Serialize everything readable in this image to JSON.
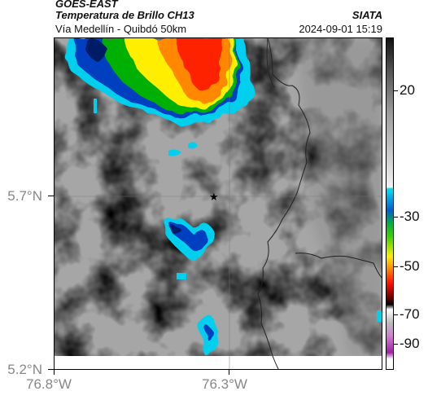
{
  "header": {
    "satellite": "GOES-EAST",
    "product": "Temperatura de Brillo CH13",
    "route": "Vía Medellín - Quibdó 50km",
    "organization": "SIATA",
    "datetime": "2024-09-01 15:19"
  },
  "axes": {
    "y_labels": [
      "5.7°N",
      "5.2°N"
    ],
    "x_labels": [
      "76.8°W",
      "76.3°W"
    ]
  },
  "colorbar": {
    "tick_labels": [
      "20",
      "-30",
      "-50",
      "-70",
      "-90"
    ]
  },
  "marker": {
    "icon": "star-icon"
  },
  "colors": {
    "cold_cloud_core": "#ff2000",
    "cloud_yellow": "#ffee00",
    "cloud_green": "#00b000",
    "cloud_blue": "#0040c0",
    "cloud_cyan": "#00d0ee",
    "background_gray": "#a9a9a9"
  }
}
